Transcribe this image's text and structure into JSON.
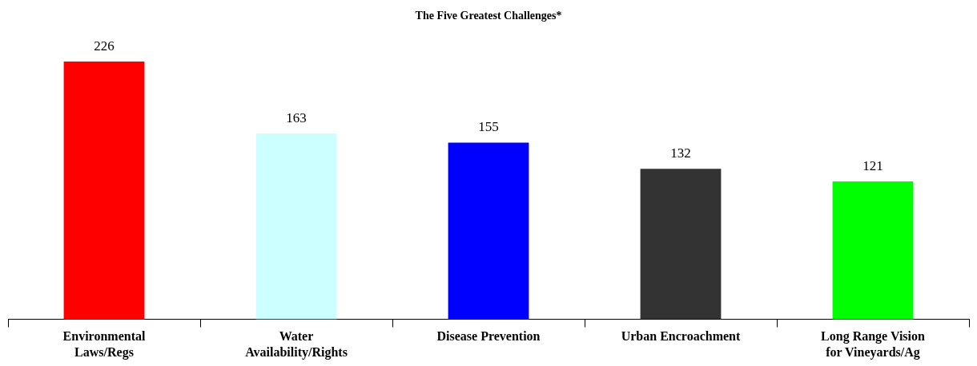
{
  "chart_data": {
    "type": "bar",
    "title": "The Five Greatest Challenges*",
    "categories": [
      "Environmental\nLaws/Regs",
      "Water\nAvailability/Rights",
      "Disease Prevention",
      "Urban Encroachment",
      "Long Range Vision\nfor Vineyards/Ag"
    ],
    "values": [
      226,
      163,
      155,
      132,
      121
    ],
    "colors": [
      "#ff0000",
      "#ccffff",
      "#0000ff",
      "#333333",
      "#00ff00"
    ],
    "data_labels": true,
    "grid": false,
    "legend": false
  }
}
